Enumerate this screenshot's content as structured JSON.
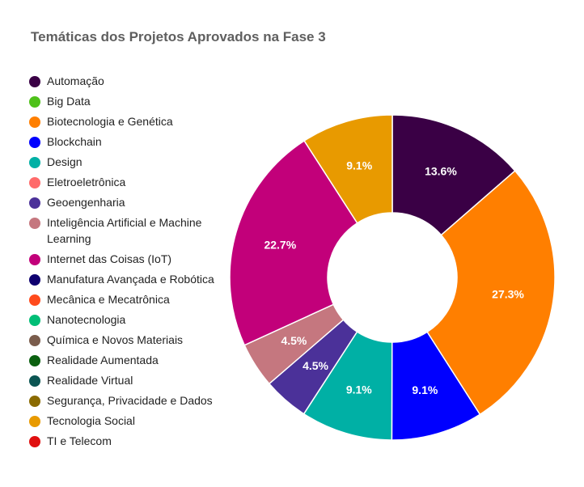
{
  "chart_data": {
    "type": "pie",
    "title": "Temáticas dos Projetos Aprovados na Fase 3",
    "legend_position": "left",
    "donut": true,
    "categories": [
      "Automação",
      "Big Data",
      "Biotecnologia e Genética",
      "Blockchain",
      "Design",
      "Eletroeletrônica",
      "Geoengenharia",
      "Inteligência Artificial e Machine Learning",
      "Internet das Coisas (IoT)",
      "Manufatura Avançada e Robótica",
      "Mecânica e Mecatrônica",
      "Nanotecnologia",
      "Química e Novos Materiais",
      "Realidade Aumentada",
      "Realidade Virtual",
      "Segurança, Privacidade e Dados",
      "Tecnologia Social",
      "TI e Telecom"
    ],
    "colors": [
      "#3a0045",
      "#4fc11a",
      "#ff7f00",
      "#0000ff",
      "#00b0a5",
      "#ff6b6b",
      "#4b3199",
      "#c5777f",
      "#c2007a",
      "#0f0070",
      "#ff4a1c",
      "#00be76",
      "#7a5c4c",
      "#0b6010",
      "#0b5552",
      "#8a6a00",
      "#e89a00",
      "#e01010"
    ],
    "values": [
      13.6,
      0,
      27.3,
      9.1,
      9.1,
      0,
      4.5,
      4.5,
      22.7,
      0,
      0,
      0,
      0,
      0,
      0,
      0,
      9.1,
      0
    ],
    "value_labels": [
      "13.6%",
      "",
      "27.3%",
      "9.1%",
      "9.1%",
      "",
      "4.5%",
      "4.5%",
      "22.7%",
      "",
      "",
      "",
      "",
      "",
      "",
      "",
      "9.1%",
      ""
    ]
  }
}
